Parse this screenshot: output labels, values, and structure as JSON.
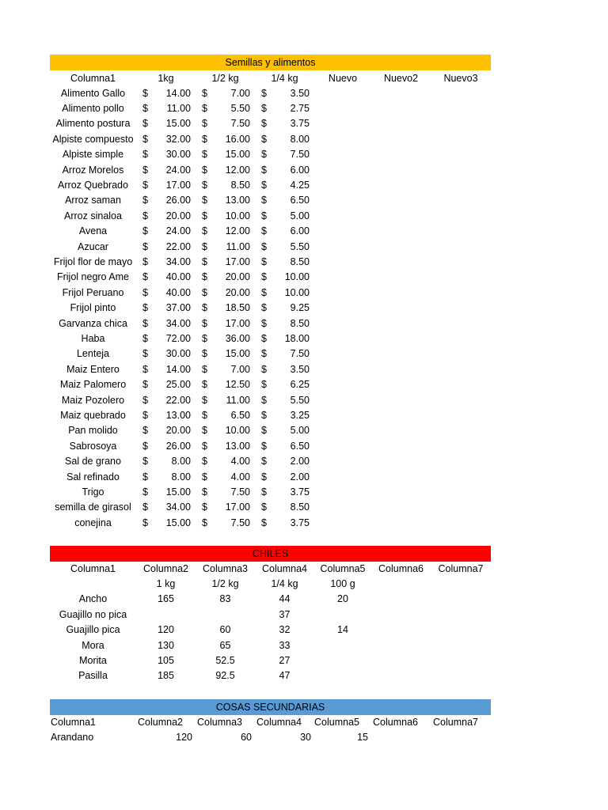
{
  "semillas": {
    "title": "Semillas y alimentos",
    "color": "#FFC000",
    "currency": "$",
    "headers": [
      "Columna1",
      "1kg",
      "1/2 kg",
      "1/4 kg",
      "Nuevo",
      "Nuevo2",
      "Nuevo3"
    ],
    "rows": [
      [
        "Alimento Gallo",
        "14.00",
        "7.00",
        "3.50"
      ],
      [
        "Alimento pollo",
        "11.00",
        "5.50",
        "2.75"
      ],
      [
        "Alimento postura",
        "15.00",
        "7.50",
        "3.75"
      ],
      [
        "Alpiste compuesto",
        "32.00",
        "16.00",
        "8.00"
      ],
      [
        "Alpiste simple",
        "30.00",
        "15.00",
        "7.50"
      ],
      [
        "Arroz Morelos",
        "24.00",
        "12.00",
        "6.00"
      ],
      [
        "Arroz Quebrado",
        "17.00",
        "8.50",
        "4.25"
      ],
      [
        "Arroz saman",
        "26.00",
        "13.00",
        "6.50"
      ],
      [
        "Arroz sinaloa",
        "20.00",
        "10.00",
        "5.00"
      ],
      [
        "Avena",
        "24.00",
        "12.00",
        "6.00"
      ],
      [
        "Azucar",
        "22.00",
        "11.00",
        "5.50"
      ],
      [
        "Frijol flor de mayo",
        "34.00",
        "17.00",
        "8.50"
      ],
      [
        "Frijol negro Ame",
        "40.00",
        "20.00",
        "10.00"
      ],
      [
        "Frijol Peruano",
        "40.00",
        "20.00",
        "10.00"
      ],
      [
        "Frijol pinto",
        "37.00",
        "18.50",
        "9.25"
      ],
      [
        "Garvanza chica",
        "34.00",
        "17.00",
        "8.50"
      ],
      [
        "Haba",
        "72.00",
        "36.00",
        "18.00"
      ],
      [
        "Lenteja",
        "30.00",
        "15.00",
        "7.50"
      ],
      [
        "Maiz Entero",
        "14.00",
        "7.00",
        "3.50"
      ],
      [
        "Maiz Palomero",
        "25.00",
        "12.50",
        "6.25"
      ],
      [
        "Maiz Pozolero",
        "22.00",
        "11.00",
        "5.50"
      ],
      [
        "Maiz quebrado",
        "13.00",
        "6.50",
        "3.25"
      ],
      [
        "Pan molido",
        "20.00",
        "10.00",
        "5.00"
      ],
      [
        "Sabrosoya",
        "26.00",
        "13.00",
        "6.50"
      ],
      [
        "Sal de grano",
        "8.00",
        "4.00",
        "2.00"
      ],
      [
        "Sal refinado",
        "8.00",
        "4.00",
        "2.00"
      ],
      [
        "Trigo",
        "15.00",
        "7.50",
        "3.75"
      ],
      [
        "semilla de girasol",
        "34.00",
        "17.00",
        "8.50"
      ],
      [
        "conejina",
        "15.00",
        "7.50",
        "3.75"
      ]
    ]
  },
  "chiles": {
    "title": "CHILES",
    "color": "#FF0000",
    "headers": [
      "Columna1",
      "Columna2",
      "Columna3",
      "Columna4",
      "Columna5",
      "Columna6",
      "Columna7"
    ],
    "units": [
      "",
      "1 kg",
      "1/2 kg",
      "1/4 kg",
      "100 g",
      "",
      ""
    ],
    "rows": [
      [
        "Ancho",
        "165",
        "83",
        "44",
        "20"
      ],
      [
        "Guajillo no pica",
        "",
        "",
        "37",
        ""
      ],
      [
        "Guajillo pica",
        "120",
        "60",
        "32",
        "14"
      ],
      [
        "Mora",
        "130",
        "65",
        "33",
        ""
      ],
      [
        "Morita",
        "105",
        "52.5",
        "27",
        ""
      ],
      [
        "Pasilla",
        "185",
        "92.5",
        "47",
        ""
      ]
    ]
  },
  "cosas": {
    "title": "COSAS SECUNDARIAS",
    "color": "#5B9BD5",
    "headers": [
      "Columna1",
      "Columna2",
      "Columna3",
      "Columna4",
      "Columna5",
      "Columna6",
      "Columna7"
    ],
    "rows": [
      [
        "Arandano",
        "120",
        "60",
        "30",
        "15"
      ]
    ]
  }
}
